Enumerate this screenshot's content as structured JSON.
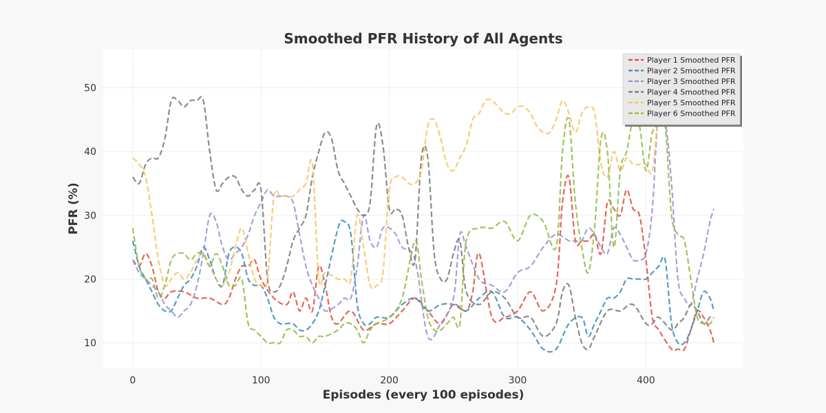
{
  "chart_data": {
    "type": "line",
    "title": "Smoothed PFR History of All Agents",
    "xlabel": "Episodes (every 100 episodes)",
    "ylabel": "PFR (%)",
    "xlim": [
      -23,
      476
    ],
    "ylim": [
      6,
      56
    ],
    "xticks": [
      0,
      100,
      200,
      300,
      400
    ],
    "yticks": [
      10,
      20,
      30,
      40,
      50
    ],
    "grid": true,
    "line_style": "dashed",
    "legend_position": "top-right",
    "series": [
      {
        "name": "Player 1 Smoothed PFR",
        "color": "#e24a33",
        "x": [
          0,
          5,
          10,
          15,
          20,
          25,
          30,
          40,
          50,
          60,
          70,
          75,
          80,
          85,
          90,
          95,
          100,
          110,
          120,
          125,
          130,
          135,
          140,
          145,
          150,
          155,
          160,
          170,
          180,
          190,
          200,
          210,
          220,
          230,
          240,
          250,
          260,
          265,
          270,
          280,
          290,
          300,
          310,
          320,
          330,
          335,
          340,
          345,
          350,
          355,
          360,
          365,
          370,
          375,
          380,
          385,
          390,
          395,
          400,
          405,
          410,
          420,
          425,
          430,
          435,
          440,
          445,
          450,
          453
        ],
        "y": [
          23,
          22,
          24,
          22,
          18,
          17,
          18,
          18,
          17,
          17,
          16,
          17,
          20,
          22,
          22,
          23,
          20,
          17,
          16,
          18,
          15,
          17,
          15,
          22,
          19,
          14,
          13,
          15,
          12,
          13,
          13,
          15,
          17,
          15,
          13,
          16,
          15,
          18,
          24,
          14,
          14,
          15,
          18,
          15,
          19,
          32,
          36,
          26,
          26,
          26,
          27,
          24,
          32,
          31,
          30,
          34,
          31,
          30,
          23,
          14,
          12,
          9,
          9,
          9,
          12,
          15,
          14,
          12,
          10
        ]
      },
      {
        "name": "Player 2 Smoothed PFR",
        "color": "#348abd",
        "x": [
          0,
          5,
          10,
          15,
          20,
          25,
          30,
          35,
          40,
          45,
          50,
          55,
          60,
          65,
          70,
          75,
          80,
          85,
          90,
          95,
          100,
          105,
          110,
          115,
          120,
          125,
          130,
          135,
          140,
          145,
          150,
          160,
          165,
          170,
          175,
          180,
          185,
          190,
          200,
          210,
          220,
          230,
          240,
          250,
          260,
          270,
          280,
          290,
          300,
          310,
          320,
          330,
          340,
          350,
          355,
          360,
          365,
          370,
          375,
          380,
          385,
          390,
          395,
          400,
          405,
          410,
          415,
          420,
          425,
          430,
          435,
          440,
          445,
          450,
          453
        ],
        "y": [
          26,
          22,
          20,
          18,
          16,
          15,
          15,
          17,
          19,
          20,
          22,
          25,
          23,
          20,
          19,
          24,
          25,
          24,
          20,
          19,
          19,
          17,
          14,
          13,
          13,
          13,
          12,
          12,
          13,
          15,
          19,
          28,
          29,
          27,
          16,
          13,
          13,
          14,
          14,
          16,
          17,
          15,
          16,
          16,
          15,
          17,
          18,
          14,
          14,
          12,
          9,
          9,
          13,
          14,
          11,
          13,
          15,
          17,
          17,
          18,
          20,
          20,
          20,
          20,
          21,
          22,
          23,
          13,
          10,
          10,
          12,
          15,
          18,
          17,
          15
        ]
      },
      {
        "name": "Player 3 Smoothed PFR",
        "color": "#988ed5",
        "x": [
          0,
          5,
          10,
          15,
          20,
          25,
          30,
          35,
          40,
          45,
          50,
          55,
          60,
          65,
          70,
          75,
          80,
          85,
          90,
          95,
          100,
          105,
          110,
          115,
          120,
          125,
          130,
          135,
          140,
          145,
          150,
          160,
          165,
          170,
          175,
          180,
          185,
          190,
          195,
          200,
          205,
          210,
          220,
          230,
          240,
          250,
          255,
          260,
          270,
          280,
          290,
          300,
          310,
          320,
          330,
          340,
          345,
          350,
          355,
          360,
          365,
          370,
          375,
          380,
          385,
          390,
          395,
          400,
          405,
          410,
          415,
          420,
          425,
          430,
          435,
          440,
          445,
          450,
          453
        ],
        "y": [
          23,
          21,
          20,
          19,
          18,
          16,
          15,
          14,
          15,
          16,
          19,
          24,
          30,
          29,
          25,
          23,
          24,
          25,
          27,
          30,
          32,
          34,
          33,
          33,
          33,
          32,
          27,
          22,
          19,
          17,
          15,
          16,
          17,
          17,
          22,
          30,
          26,
          25,
          28,
          28,
          27,
          25,
          23,
          11,
          13,
          17,
          27,
          25,
          20,
          19,
          18,
          21,
          22,
          25,
          27,
          26,
          26,
          26,
          28,
          27,
          25,
          24,
          28,
          27,
          25,
          23,
          23,
          24,
          31,
          47,
          45,
          35,
          20,
          17,
          16,
          20,
          24,
          29,
          31
        ]
      },
      {
        "name": "Player 4 Smoothed PFR",
        "color": "#777777",
        "x": [
          0,
          5,
          10,
          15,
          20,
          25,
          30,
          35,
          40,
          45,
          50,
          55,
          60,
          65,
          70,
          75,
          80,
          85,
          90,
          95,
          100,
          105,
          110,
          115,
          120,
          125,
          130,
          135,
          140,
          145,
          150,
          155,
          160,
          165,
          170,
          175,
          180,
          185,
          190,
          195,
          200,
          205,
          210,
          215,
          220,
          225,
          230,
          235,
          240,
          245,
          250,
          255,
          260,
          270,
          280,
          290,
          300,
          310,
          320,
          330,
          335,
          340,
          345,
          350,
          355,
          360,
          370,
          380,
          390,
          400,
          405,
          410,
          420,
          425,
          430,
          435,
          440,
          445,
          450,
          453
        ],
        "y": [
          36,
          35,
          38,
          39,
          39,
          42,
          48,
          48,
          47,
          48,
          48,
          48,
          40,
          34,
          35,
          36,
          36,
          34,
          33,
          34,
          34,
          20,
          18,
          19,
          22,
          26,
          28,
          30,
          36,
          40,
          43,
          42,
          37,
          35,
          33,
          31,
          30,
          32,
          44,
          41,
          31,
          31,
          30,
          25,
          23,
          39,
          39,
          24,
          20,
          20,
          24,
          26,
          18,
          16,
          18,
          17,
          14,
          14,
          11,
          13,
          18,
          19,
          14,
          10,
          9,
          11,
          15,
          15,
          16,
          13,
          13,
          14,
          12,
          13,
          14,
          16,
          15,
          13,
          14,
          14
        ]
      },
      {
        "name": "Player 5 Smoothed PFR",
        "color": "#fbc15e",
        "x": [
          0,
          5,
          10,
          15,
          20,
          25,
          30,
          35,
          40,
          45,
          50,
          55,
          60,
          65,
          70,
          75,
          80,
          85,
          90,
          95,
          100,
          105,
          110,
          115,
          120,
          125,
          130,
          135,
          140,
          145,
          150,
          160,
          165,
          170,
          175,
          180,
          185,
          190,
          195,
          200,
          205,
          210,
          215,
          220,
          225,
          230,
          235,
          240,
          245,
          250,
          255,
          260,
          265,
          270,
          275,
          280,
          285,
          290,
          295,
          300,
          305,
          310,
          315,
          320,
          325,
          330,
          335,
          340,
          345,
          350,
          355,
          360,
          365,
          370,
          375,
          380,
          385,
          390,
          395,
          400,
          405,
          410
        ],
        "y": [
          39,
          38,
          36,
          30,
          23,
          19,
          20,
          21,
          20,
          21,
          23,
          24,
          22,
          20,
          19,
          21,
          25,
          28,
          24,
          20,
          19,
          20,
          33,
          33,
          33,
          33,
          34,
          35,
          38,
          20,
          21,
          20,
          20,
          20,
          30,
          25,
          19,
          19,
          21,
          34,
          36,
          36,
          35,
          35,
          37,
          44,
          45,
          42,
          38,
          37,
          39,
          41,
          45,
          46,
          48,
          48,
          47,
          46,
          46,
          47,
          47,
          46,
          44,
          43,
          43,
          45,
          48,
          46,
          43,
          46,
          47,
          46,
          38,
          36,
          40,
          37,
          39,
          38,
          38,
          38,
          37,
          47
        ]
      },
      {
        "name": "Player 6 Smoothed PFR",
        "color": "#8eba42",
        "x": [
          0,
          5,
          10,
          15,
          20,
          25,
          30,
          35,
          40,
          45,
          50,
          55,
          60,
          65,
          70,
          75,
          80,
          85,
          90,
          95,
          100,
          105,
          110,
          115,
          120,
          125,
          130,
          135,
          140,
          145,
          150,
          160,
          165,
          170,
          175,
          180,
          185,
          190,
          200,
          210,
          220,
          225,
          230,
          235,
          240,
          245,
          250,
          255,
          260,
          270,
          280,
          290,
          300,
          310,
          320,
          330,
          335,
          340,
          345,
          350,
          355,
          360,
          365,
          370,
          375,
          380,
          385,
          390,
          395,
          400,
          405,
          410,
          415,
          420,
          425,
          430,
          435,
          440,
          445,
          450,
          453
        ],
        "y": [
          28,
          22,
          20,
          20,
          17,
          19,
          23,
          24,
          24,
          23,
          24,
          24,
          22,
          24,
          22,
          19,
          19,
          20,
          13,
          12,
          11,
          10,
          10,
          10,
          12,
          12,
          11,
          11,
          10,
          11,
          11,
          12,
          13,
          13,
          12,
          10,
          12,
          13,
          14,
          17,
          26,
          20,
          14,
          12,
          12,
          13,
          14,
          13,
          26,
          28,
          28,
          29,
          26,
          30,
          29,
          25,
          40,
          45,
          32,
          25,
          21,
          28,
          42,
          40,
          25,
          37,
          40,
          45,
          44,
          37,
          43,
          44,
          44,
          30,
          27,
          26,
          20,
          14,
          13,
          13,
          14
        ]
      }
    ]
  }
}
